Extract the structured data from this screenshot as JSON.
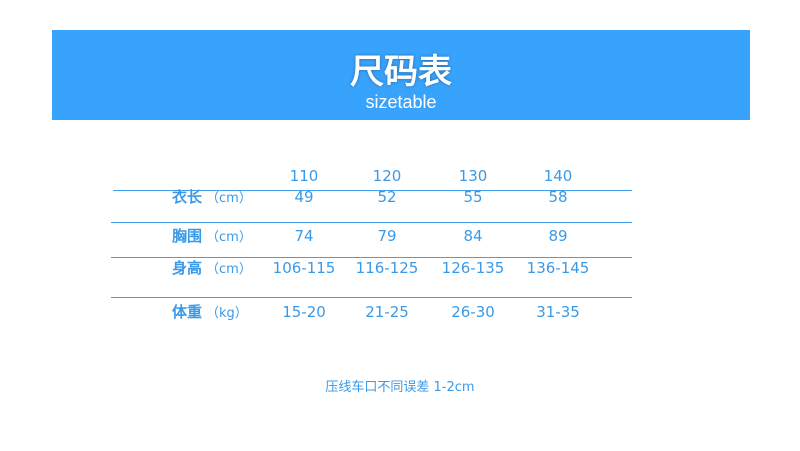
{
  "banner": {
    "title": "尺码表",
    "subtitle": "sizetable",
    "color": "#38a3fd"
  },
  "table": {
    "sizes": [
      "110",
      "120",
      "130",
      "140"
    ],
    "rows": [
      {
        "label": "衣长",
        "unit": "（cm）",
        "values": [
          "49",
          "52",
          "55",
          "58"
        ]
      },
      {
        "label": "胸围",
        "unit": "（cm）",
        "values": [
          "74",
          "79",
          "84",
          "89"
        ]
      },
      {
        "label": "身高",
        "unit": "（cm）",
        "values": [
          "106-115",
          "116-125",
          "126-135",
          "136-145"
        ]
      },
      {
        "label": "体重",
        "unit": "（kg）",
        "values": [
          "15-20",
          "21-25",
          "26-30",
          "31-35"
        ]
      }
    ]
  },
  "footer": {
    "note": "压线车口不同误差 1-2cm"
  },
  "colors": {
    "text": "#3a9ae8",
    "rule": "#3fa0f0"
  }
}
